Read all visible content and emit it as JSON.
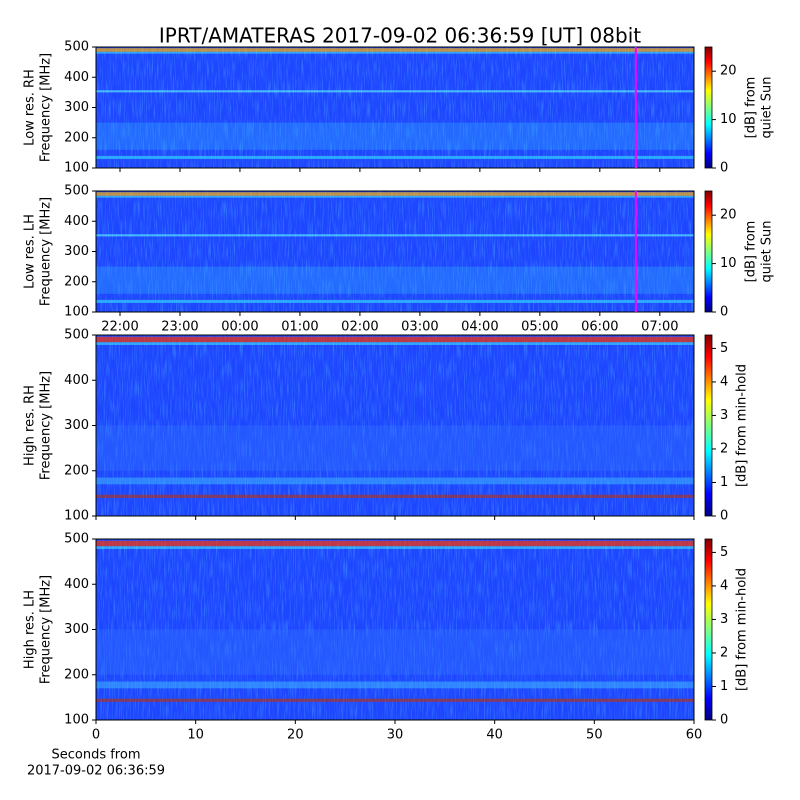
{
  "title": "IPRT/AMATERAS 2017-09-02 06:36:59 [UT]   08bit",
  "chart_data": [
    {
      "type": "heatmap",
      "ylabel": [
        "Low res. RH",
        "Frequency [MHz]"
      ],
      "xlim": [
        21.6,
        31.57
      ],
      "xticks": [
        {
          "value": 22,
          "label": "22:00"
        },
        {
          "value": 23,
          "label": "23:00"
        },
        {
          "value": 24,
          "label": "00:00"
        },
        {
          "value": 25,
          "label": "01:00"
        },
        {
          "value": 26,
          "label": "02:00"
        },
        {
          "value": 27,
          "label": "03:00"
        },
        {
          "value": 28,
          "label": "04:00"
        },
        {
          "value": 29,
          "label": "05:00"
        },
        {
          "value": 30,
          "label": "06:00"
        },
        {
          "value": 31,
          "label": "07:00"
        }
      ],
      "xticklabels": false,
      "ylim": [
        100,
        500
      ],
      "yticks": [
        100,
        200,
        300,
        400,
        500
      ],
      "vline": 30.6,
      "vline_color": "#ff00ff",
      "clim": [
        0,
        25
      ],
      "cticks": [
        0,
        10,
        20
      ],
      "clabel": [
        "[dB] from",
        "quiet Sun"
      ]
    },
    {
      "type": "heatmap",
      "ylabel": [
        "Low res. LH",
        "Frequency [MHz]"
      ],
      "xlim": [
        21.6,
        31.57
      ],
      "xticks": [
        {
          "value": 22,
          "label": "22:00"
        },
        {
          "value": 23,
          "label": "23:00"
        },
        {
          "value": 24,
          "label": "00:00"
        },
        {
          "value": 25,
          "label": "01:00"
        },
        {
          "value": 26,
          "label": "02:00"
        },
        {
          "value": 27,
          "label": "03:00"
        },
        {
          "value": 28,
          "label": "04:00"
        },
        {
          "value": 29,
          "label": "05:00"
        },
        {
          "value": 30,
          "label": "06:00"
        },
        {
          "value": 31,
          "label": "07:00"
        }
      ],
      "xticklabels": true,
      "ylim": [
        100,
        500
      ],
      "yticks": [
        100,
        200,
        300,
        400,
        500
      ],
      "vline": 30.6,
      "vline_color": "#ff00ff",
      "clim": [
        0,
        25
      ],
      "cticks": [
        0,
        10,
        20
      ],
      "clabel": [
        "[dB] from",
        "quiet Sun"
      ]
    },
    {
      "type": "heatmap",
      "ylabel": [
        "High res. RH",
        "Frequency [MHz]"
      ],
      "xlim": [
        0,
        60
      ],
      "xticks": [
        0,
        10,
        20,
        30,
        40,
        50,
        60
      ],
      "xticklabels": false,
      "ylim": [
        100,
        500
      ],
      "yticks": [
        100,
        200,
        300,
        400,
        500
      ],
      "clim": [
        0,
        5.4
      ],
      "cticks": [
        0,
        1,
        2,
        3,
        4,
        5
      ],
      "clabel": [
        "[dB] from min-hold"
      ]
    },
    {
      "type": "heatmap",
      "ylabel": [
        "High res. LH",
        "Frequency [MHz]"
      ],
      "xlim": [
        0,
        60
      ],
      "xticks": [
        0,
        10,
        20,
        30,
        40,
        50,
        60
      ],
      "xticklabels": true,
      "ylim": [
        100,
        500
      ],
      "yticks": [
        100,
        200,
        300,
        400,
        500
      ],
      "clim": [
        0,
        5.4
      ],
      "cticks": [
        0,
        1,
        2,
        3,
        4,
        5
      ],
      "clabel": [
        "[dB] from min-hold"
      ],
      "xlabel": [
        "Seconds from",
        "2017-09-02 06:36:59"
      ]
    }
  ]
}
